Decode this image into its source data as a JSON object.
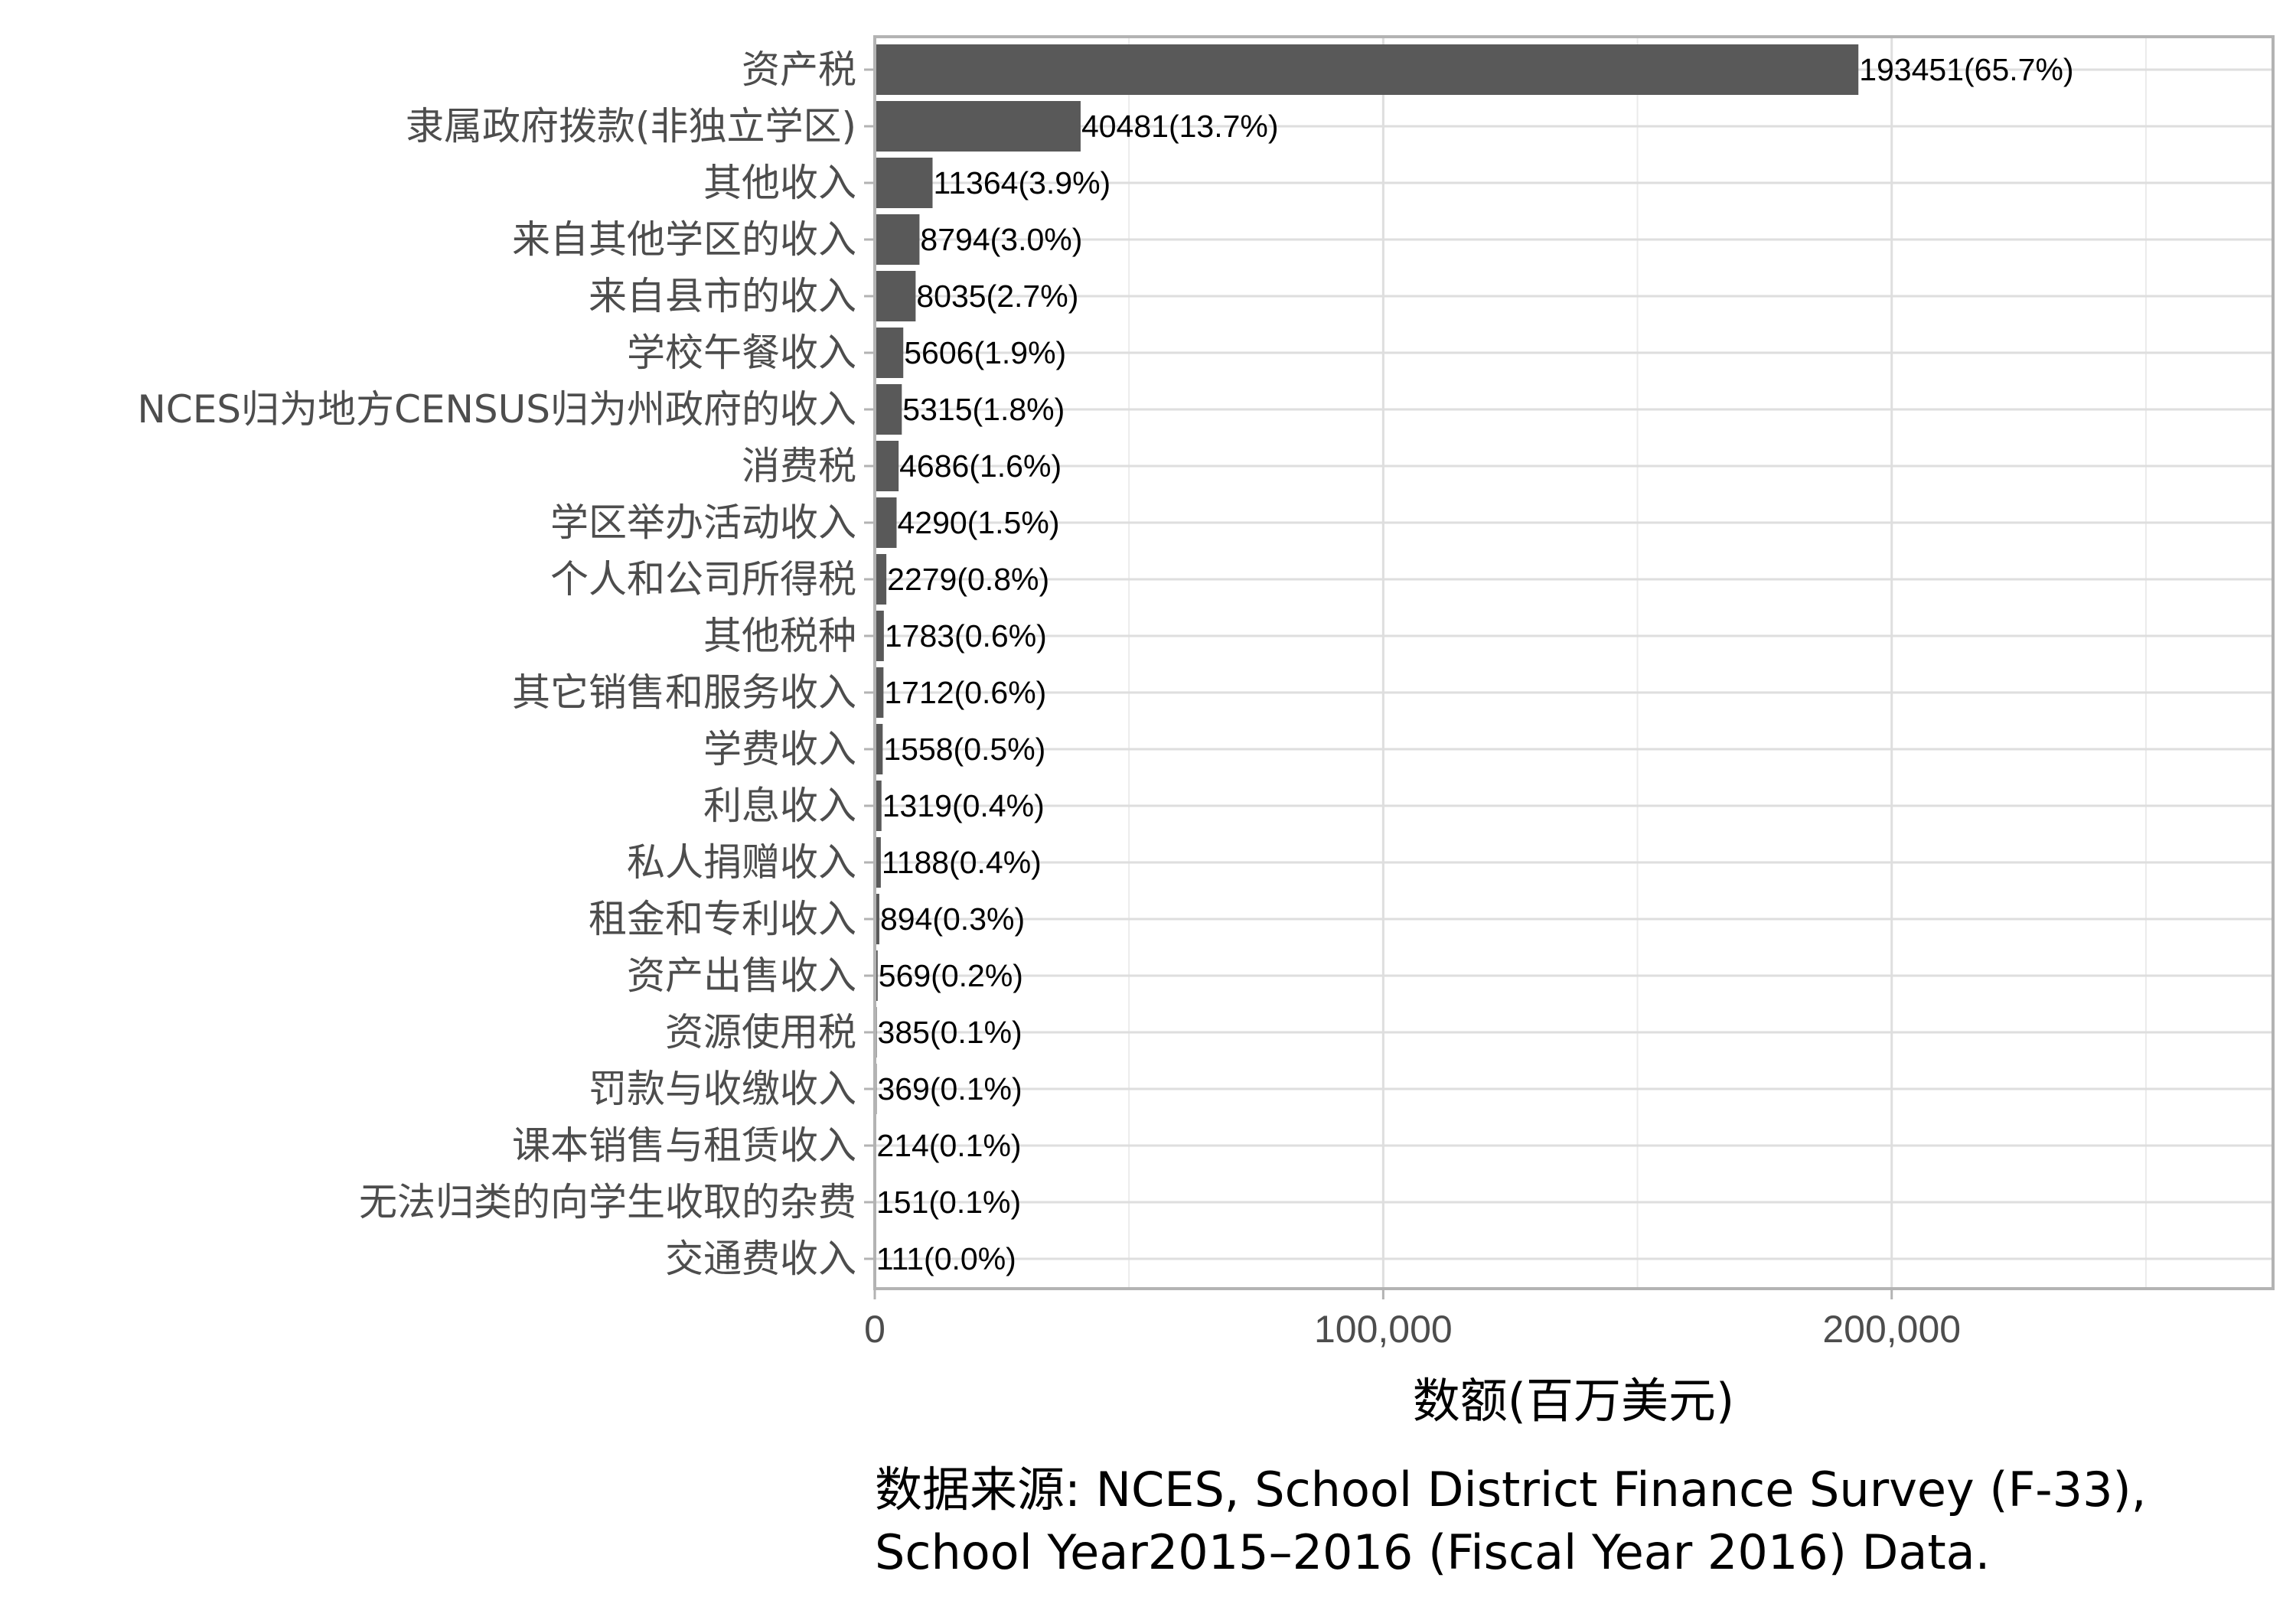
{
  "chart_data": {
    "type": "bar",
    "orientation": "horizontal",
    "categories": [
      "资产税",
      "隶属政府拨款(非独立学区)",
      "其他收入",
      "来自其他学区的收入",
      "来自县市的收入",
      "学校午餐收入",
      "NCES归为地方CENSUS归为州政府的收入",
      "消费税",
      "学区举办活动收入",
      "个人和公司所得税",
      "其他税种",
      "其它销售和服务收入",
      "学费收入",
      "利息收入",
      "私人捐赠收入",
      "租金和专利收入",
      "资产出售收入",
      "资源使用税",
      "罚款与收缴收入",
      "课本销售与租赁收入",
      "无法归类的向学生收取的杂费",
      "交通费收入"
    ],
    "values": [
      193451,
      40481,
      11364,
      8794,
      8035,
      5606,
      5315,
      4686,
      4290,
      2279,
      1783,
      1712,
      1558,
      1319,
      1188,
      894,
      569,
      385,
      369,
      214,
      151,
      111
    ],
    "data_labels": [
      "193451(65.7%)",
      "40481(13.7%)",
      "11364(3.9%)",
      "8794(3.0%)",
      "8035(2.7%)",
      "5606(1.9%)",
      "5315(1.8%)",
      "4686(1.6%)",
      "4290(1.5%)",
      "2279(0.8%)",
      "1783(0.6%)",
      "1712(0.6%)",
      "1558(0.5%)",
      "1319(0.4%)",
      "1188(0.4%)",
      "894(0.3%)",
      "569(0.2%)",
      "385(0.1%)",
      "369(0.1%)",
      "214(0.1%)",
      "151(0.1%)",
      "111(0.0%)"
    ],
    "xlabel": "数额(百万美元)",
    "ylabel": "",
    "xlim": [
      0,
      275000
    ],
    "x_ticks": [
      0,
      100000,
      200000
    ],
    "x_tick_labels": [
      "0",
      "100,000",
      "200,000"
    ],
    "grid": true,
    "bar_color": "#595959",
    "caption_lines": [
      "数据来源: NCES, School District Finance Survey (F-33),",
      "School Year2015–2016 (Fiscal Year 2016) Data."
    ]
  }
}
